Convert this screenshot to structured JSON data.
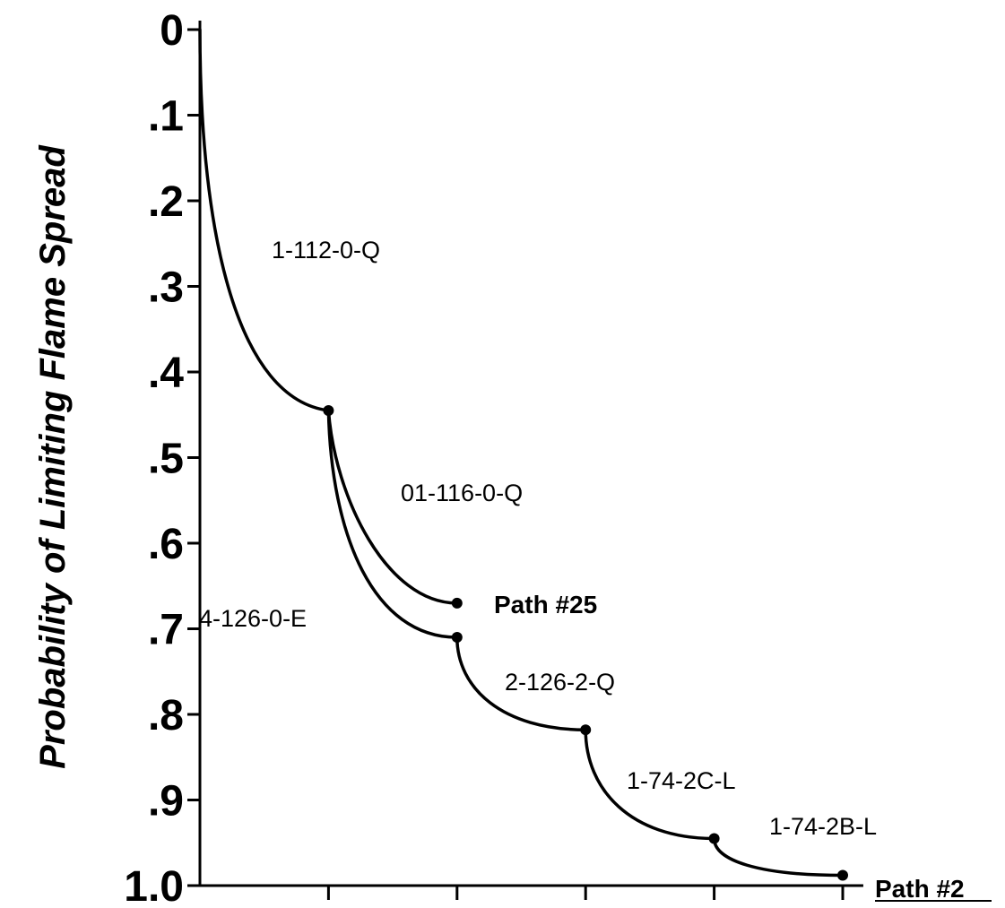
{
  "chart_data": {
    "type": "line",
    "title": "",
    "xlabel": "",
    "ylabel": "Probability of Limiting Flame Spread",
    "ylim": [
      0,
      1.0
    ],
    "y_inverted": true,
    "yticks": [
      0,
      0.1,
      0.2,
      0.3,
      0.4,
      0.5,
      0.6,
      0.7,
      0.8,
      0.9,
      1.0
    ],
    "ytick_labels": [
      "0",
      ".1",
      ".2",
      ".3",
      ".4",
      ".5",
      ".6",
      ".7",
      ".8",
      ".9",
      "1.0"
    ],
    "x_tick_count": 5,
    "grid": false,
    "nodes": [
      {
        "id": "start",
        "step": 0,
        "value": 0.0
      },
      {
        "id": "n1",
        "step": 1,
        "value": 0.445
      },
      {
        "id": "p25end",
        "step": 2,
        "value": 0.67
      },
      {
        "id": "n2",
        "step": 2,
        "value": 0.71
      },
      {
        "id": "n3",
        "step": 3,
        "value": 0.818
      },
      {
        "id": "n4",
        "step": 4,
        "value": 0.945
      },
      {
        "id": "p2end",
        "step": 5,
        "value": 0.988
      }
    ],
    "segments": [
      {
        "label": "1-112-0-Q",
        "from": "start",
        "to": "n1"
      },
      {
        "label": "01-116-0-Q",
        "from": "n1",
        "to": "p25end"
      },
      {
        "label": "4-126-0-E",
        "from": "n1",
        "to": "n2"
      },
      {
        "label": "2-126-2-Q",
        "from": "n2",
        "to": "n3"
      },
      {
        "label": "1-74-2C-L",
        "from": "n3",
        "to": "n4"
      },
      {
        "label": "1-74-2B-L",
        "from": "n4",
        "to": "p2end"
      }
    ],
    "series": [
      {
        "name": "Path #25",
        "nodes": [
          "start",
          "n1",
          "p25end"
        ]
      },
      {
        "name": "Path #2",
        "nodes": [
          "start",
          "n1",
          "n2",
          "n3",
          "n4",
          "p2end"
        ]
      }
    ]
  }
}
